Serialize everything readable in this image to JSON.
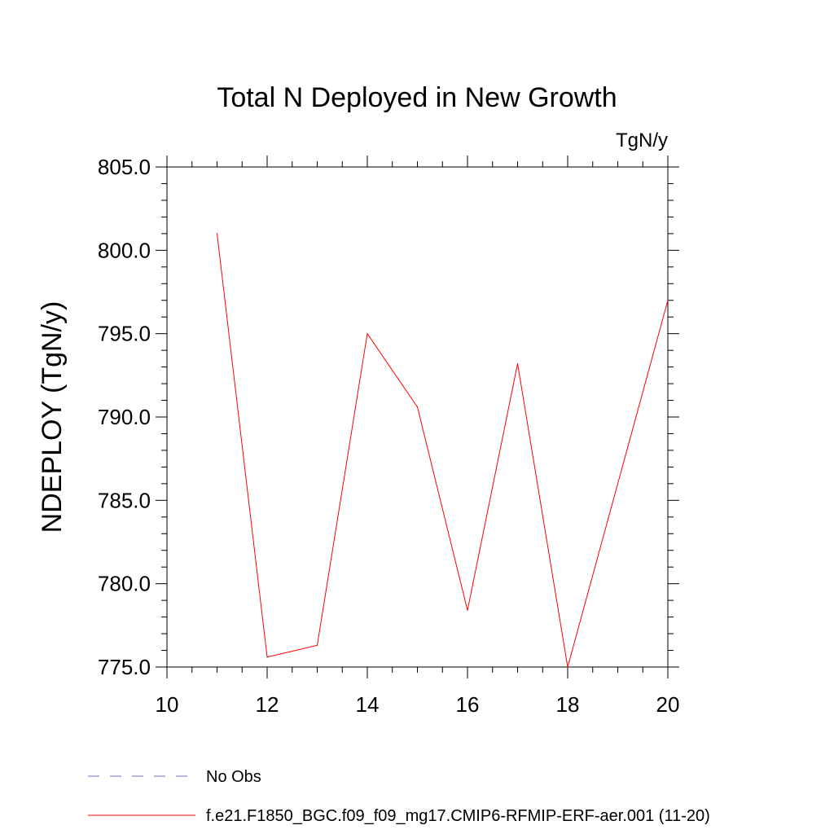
{
  "chart_data": {
    "type": "line",
    "title": "Total N Deployed in New Growth",
    "units_label": "TgN/y",
    "ylabel": "NDEPLOY  (TgN/y)",
    "xlabel": "",
    "xlim": [
      10,
      20
    ],
    "ylim": [
      775.0,
      805.0
    ],
    "x_ticks": [
      10,
      12,
      14,
      16,
      18,
      20
    ],
    "x_tick_labels": [
      "10",
      "12",
      "14",
      "16",
      "18",
      "20"
    ],
    "y_ticks": [
      775.0,
      780.0,
      785.0,
      790.0,
      795.0,
      800.0,
      805.0
    ],
    "y_tick_labels": [
      "775.0",
      "780.0",
      "785.0",
      "790.0",
      "795.0",
      "800.0",
      "805.0"
    ],
    "grid": false,
    "legend_position": "bottom",
    "series": [
      {
        "name": "f.e21.F1850_BGC.f09_f09_mg17.CMIP6-RFMIP-ERF-aer.001 (11-20)",
        "color": "#ff0000",
        "style": "solid",
        "x": [
          11,
          12,
          13,
          14,
          15,
          16,
          17,
          18,
          20
        ],
        "y": [
          801.0,
          775.6,
          776.3,
          795.0,
          790.6,
          778.4,
          793.2,
          775.0,
          797.0
        ]
      }
    ],
    "legend": [
      {
        "label": "No Obs",
        "color": "#7b68b0",
        "style": "dashed"
      },
      {
        "label": "f.e21.F1850_BGC.f09_f09_mg17.CMIP6-RFMIP-ERF-aer.001 (11-20)",
        "color": "#ff0000",
        "style": "solid"
      }
    ]
  }
}
